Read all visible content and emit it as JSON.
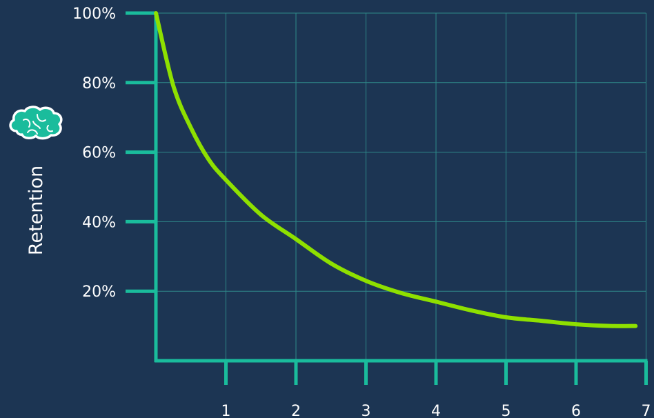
{
  "chart_data": {
    "type": "line",
    "ylabel": "Retention",
    "xlabel": "",
    "title": "",
    "x_ticks": [
      "1",
      "2",
      "3",
      "4",
      "5",
      "6",
      "7"
    ],
    "y_ticks": [
      "20%",
      "40%",
      "60%",
      "80%",
      "100%"
    ],
    "xlim": [
      0,
      7
    ],
    "ylim": [
      0,
      100
    ],
    "grid": true,
    "series": [
      {
        "x": [
          0,
          0.25,
          0.5,
          0.75,
          1,
          1.5,
          2,
          2.5,
          3,
          3.5,
          4,
          4.5,
          5,
          5.5,
          6,
          6.5,
          6.85
        ],
        "values": [
          100,
          79,
          67,
          58,
          52,
          42,
          35,
          28,
          23,
          19.5,
          17,
          14.5,
          12.5,
          11.5,
          10.5,
          10,
          10
        ]
      }
    ]
  },
  "colors": {
    "background": "#1c3553",
    "axis": "#1abc9c",
    "grid": "#2e8a8a",
    "curve": "#8ee000",
    "text": "#ffffff",
    "icon_fill": "#1abc9c"
  },
  "icon": "brain-icon"
}
